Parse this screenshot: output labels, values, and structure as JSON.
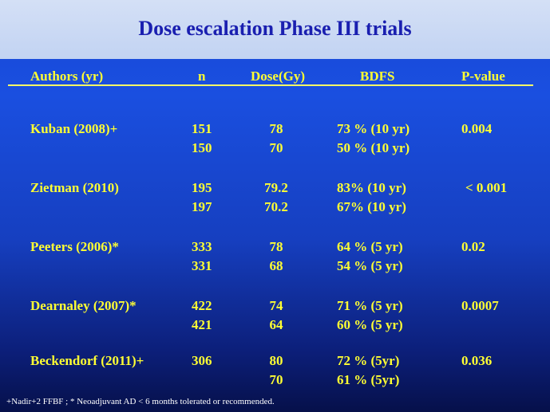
{
  "title": "Dose escalation Phase III trials",
  "headers": {
    "authors": "Authors (yr)",
    "n": "n",
    "dose": "Dose(Gy)",
    "bdfs": "BDFS",
    "pvalue": "P-value"
  },
  "trials": [
    {
      "author": "Kuban (2008)+",
      "n": [
        "151",
        "150"
      ],
      "dose": [
        "78",
        "70"
      ],
      "bdfs": [
        "73 %  (10 yr)",
        "50 %  (10 yr)"
      ],
      "pvalue": "0.004"
    },
    {
      "author": "Zietman (2010)",
      "n": [
        "195",
        "197"
      ],
      "dose": [
        "79.2",
        "70.2"
      ],
      "bdfs": [
        "83%   (10 yr)",
        "67%  (10 yr)"
      ],
      "pvalue": "< 0.001"
    },
    {
      "author": "Peeters (2006)*",
      "n": [
        "333",
        "331"
      ],
      "dose": [
        "78",
        "68"
      ],
      "bdfs": [
        "64 %  (5 yr)",
        "54 %  (5 yr)"
      ],
      "pvalue": "0.02"
    },
    {
      "author": "Dearnaley (2007)*",
      "n": [
        "422",
        "421"
      ],
      "dose": [
        "74",
        "64"
      ],
      "bdfs": [
        "71 %  (5 yr)",
        "60 %  (5 yr)"
      ],
      "pvalue": "0.0007"
    },
    {
      "author": "Beckendorf (2011)+",
      "n": [
        "306",
        ""
      ],
      "dose": [
        "80",
        "70"
      ],
      "bdfs": [
        "72 % (5yr)",
        "61 % (5yr)"
      ],
      "pvalue": "0.036"
    }
  ],
  "footnote": "+Nadir+2 FFBF ; * Neoadjuvant AD < 6 months tolerated or recommended."
}
